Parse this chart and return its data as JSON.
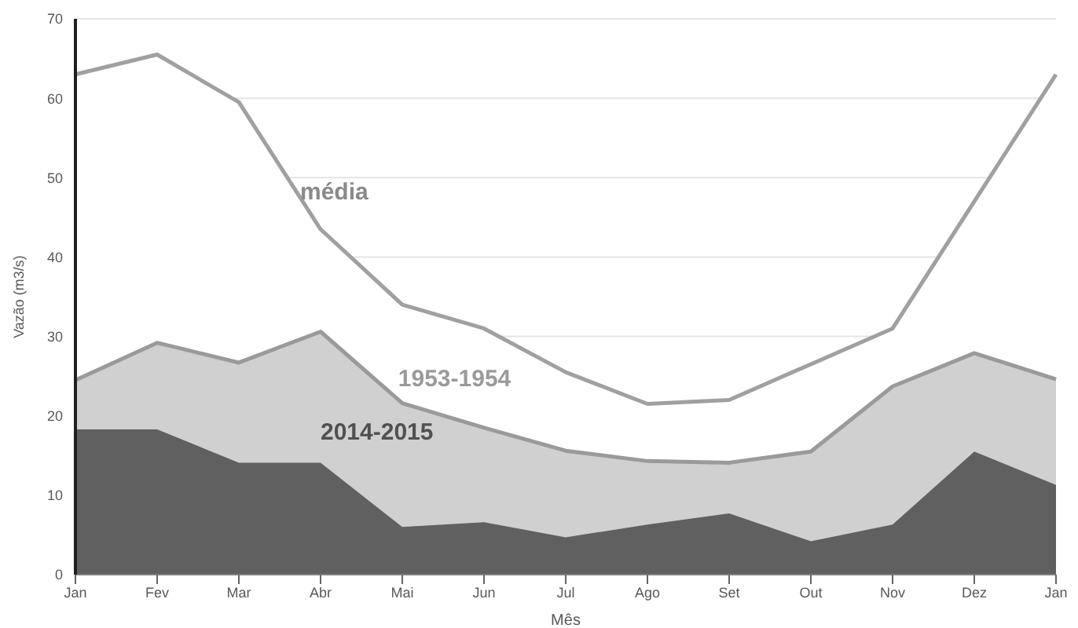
{
  "chart_data": {
    "type": "area",
    "xlabel": "Mês",
    "ylabel": "Vazão (m3/s)",
    "categories": [
      "Jan",
      "Fev",
      "Mar",
      "Abr",
      "Mai",
      "Jun",
      "Jul",
      "Ago",
      "Set",
      "Out",
      "Nov",
      "Dez",
      "Jan"
    ],
    "ylim": [
      0,
      70
    ],
    "yticks": [
      0,
      10,
      20,
      30,
      40,
      50,
      60,
      70
    ],
    "grid": "y",
    "legend": false,
    "series": [
      {
        "name": "média",
        "color": "#a0a0a0",
        "values": [
          63,
          65.5,
          59.5,
          43.5,
          34,
          31,
          25.5,
          21.5,
          22,
          26.5,
          31,
          47,
          63
        ]
      },
      {
        "name": "1953-1954",
        "color": "#d0d0d0",
        "values": [
          24.5,
          29.2,
          26.7,
          30.6,
          21.6,
          18.5,
          15.6,
          14.3,
          14.1,
          15.5,
          23.7,
          27.9,
          24.6
        ]
      },
      {
        "name": "2014-2015",
        "color": "#606060",
        "values": [
          18.3,
          18.3,
          14.1,
          14.1,
          6,
          6.6,
          4.7,
          6.3,
          7.7,
          4.2,
          6.3,
          15.5,
          11.3
        ]
      }
    ]
  }
}
